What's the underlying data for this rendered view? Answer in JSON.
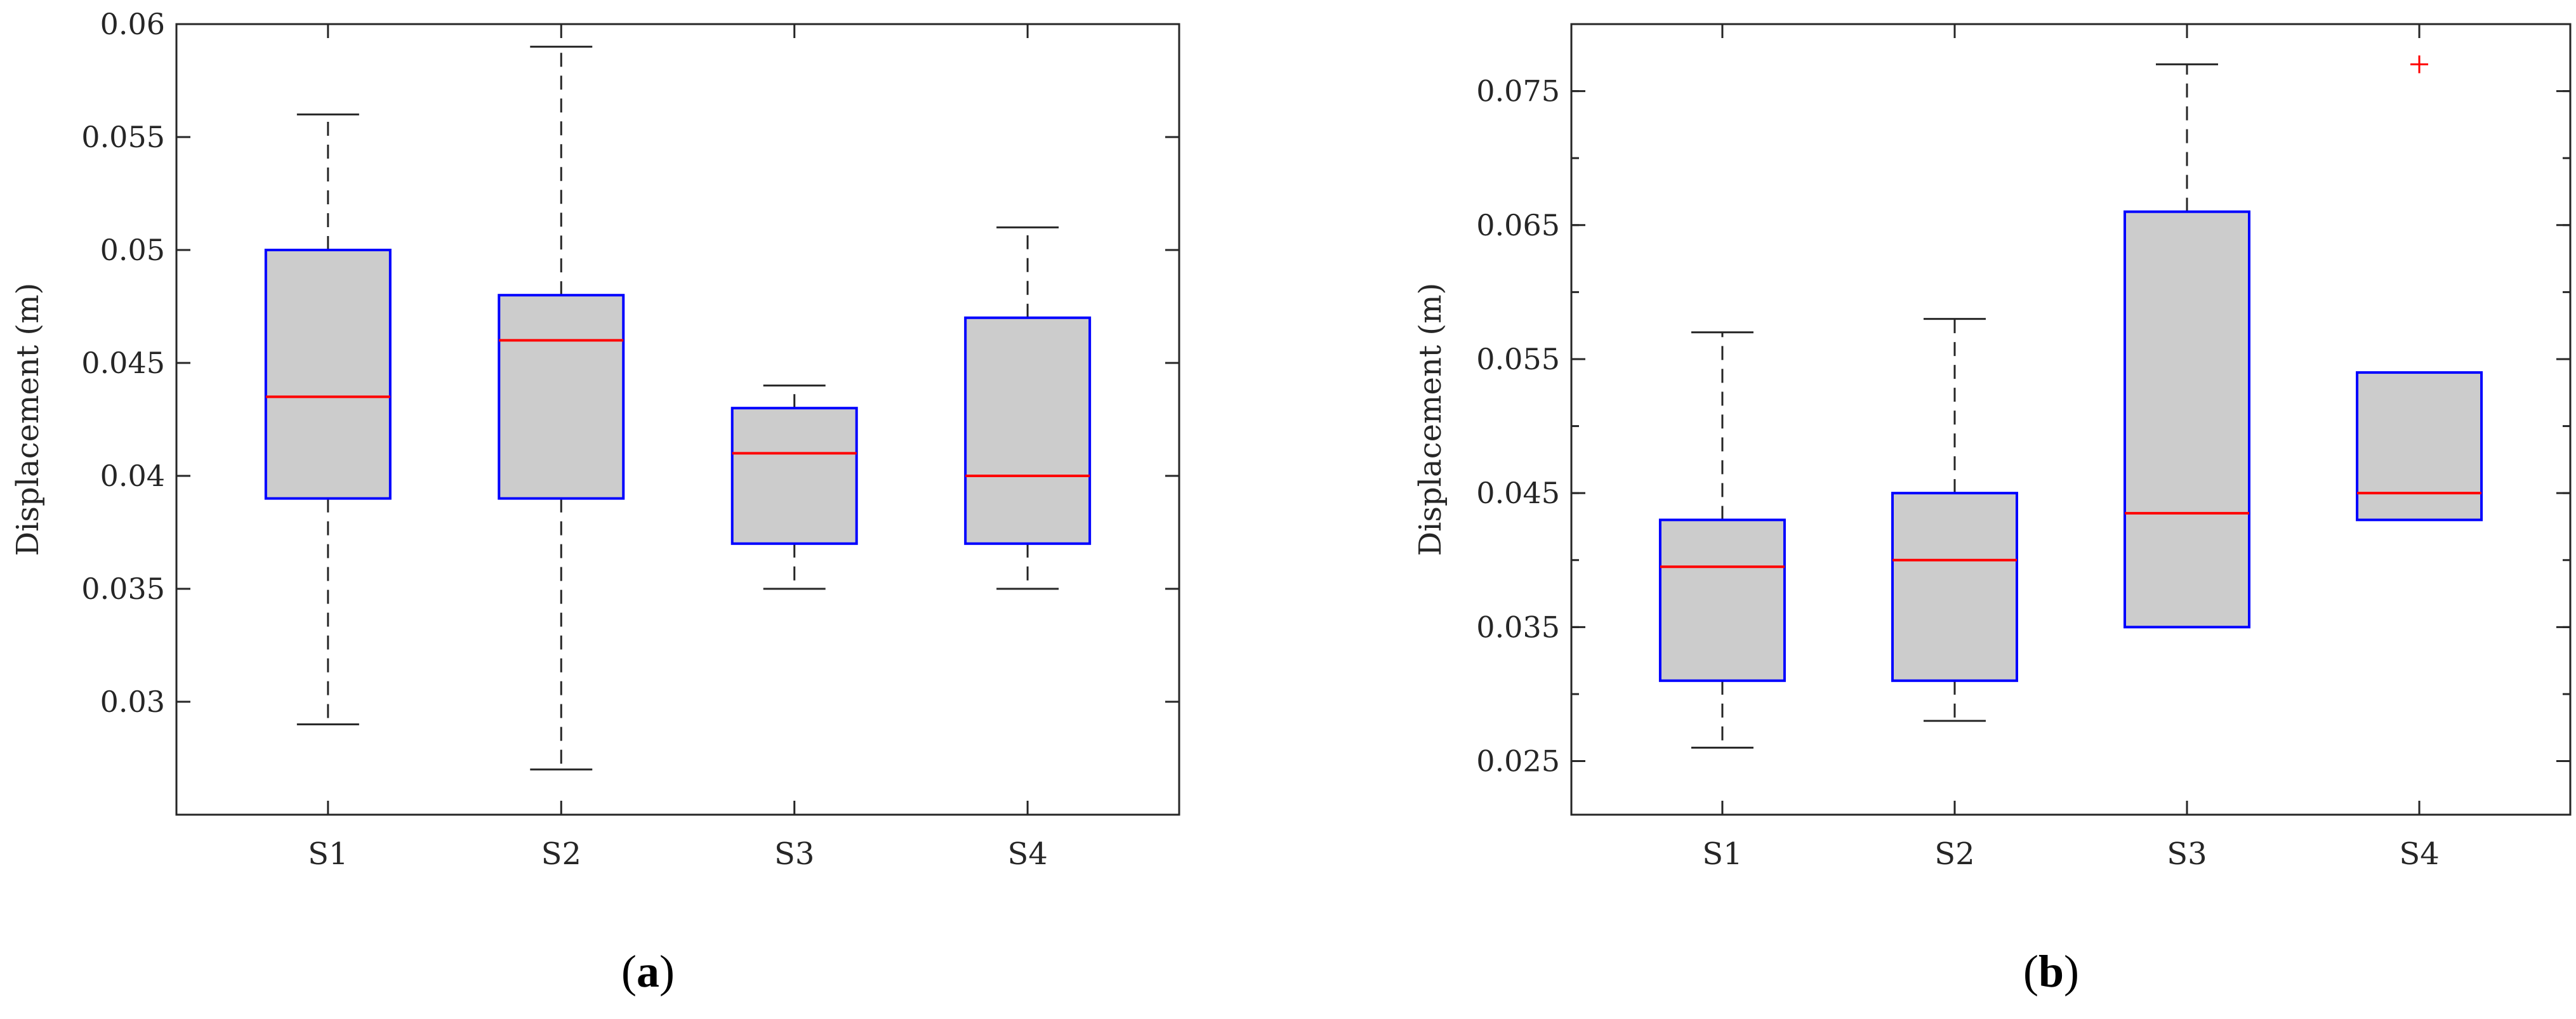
{
  "chart_data": [
    {
      "type": "box",
      "id": "a",
      "caption_letter": "a",
      "ylabel": "Displacement (m)",
      "ylim": [
        0.025,
        0.06
      ],
      "yticks": [
        "0.03",
        "0.035",
        "0.04",
        "0.045",
        "0.05",
        "0.055",
        "0.06"
      ],
      "minor_ticks": false,
      "categories": [
        "S1",
        "S2",
        "S3",
        "S4"
      ],
      "boxes": [
        {
          "name": "S1",
          "whisker_low": 0.029,
          "q1": 0.039,
          "median": 0.0435,
          "q3": 0.05,
          "whisker_high": 0.056,
          "outliers": []
        },
        {
          "name": "S2",
          "whisker_low": 0.027,
          "q1": 0.039,
          "median": 0.046,
          "q3": 0.048,
          "whisker_high": 0.059,
          "outliers": []
        },
        {
          "name": "S3",
          "whisker_low": 0.035,
          "q1": 0.037,
          "median": 0.041,
          "q3": 0.043,
          "whisker_high": 0.044,
          "outliers": []
        },
        {
          "name": "S4",
          "whisker_low": 0.035,
          "q1": 0.037,
          "median": 0.04,
          "q3": 0.047,
          "whisker_high": 0.051,
          "outliers": []
        }
      ]
    },
    {
      "type": "box",
      "id": "b",
      "caption_letter": "b",
      "ylabel": "Displacement (m)",
      "ylim": [
        0.021,
        0.08
      ],
      "yticks": [
        "0.025",
        "0.035",
        "0.045",
        "0.055",
        "0.065",
        "0.075"
      ],
      "minor_ticks": true,
      "categories": [
        "S1",
        "S2",
        "S3",
        "S4"
      ],
      "boxes": [
        {
          "name": "S1",
          "whisker_low": 0.026,
          "q1": 0.031,
          "median": 0.0395,
          "q3": 0.043,
          "whisker_high": 0.057,
          "outliers": []
        },
        {
          "name": "S2",
          "whisker_low": 0.028,
          "q1": 0.031,
          "median": 0.04,
          "q3": 0.045,
          "whisker_high": 0.058,
          "outliers": []
        },
        {
          "name": "S3",
          "whisker_low": 0.035,
          "q1": 0.035,
          "median": 0.0435,
          "q3": 0.066,
          "whisker_high": 0.077,
          "outliers": []
        },
        {
          "name": "S4",
          "whisker_low": 0.043,
          "q1": 0.043,
          "median": 0.045,
          "q3": 0.054,
          "whisker_high": 0.054,
          "outliers": [
            0.077
          ]
        }
      ]
    }
  ],
  "colors": {
    "box_edge": "#0000ff",
    "box_fill": "#cccccc",
    "median": "#ff0000",
    "whisker": "#262626",
    "outlier": "#ff0000",
    "axes": "#262626"
  }
}
